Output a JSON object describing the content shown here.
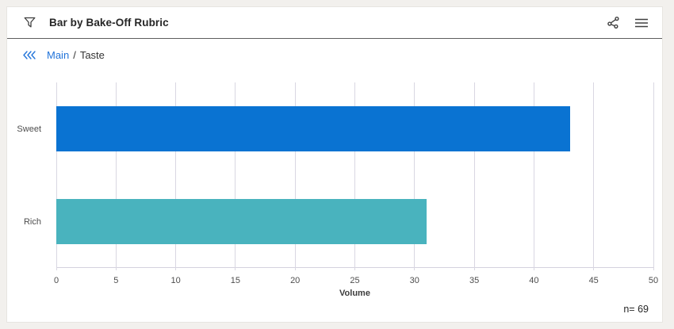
{
  "header": {
    "title": "Bar by Bake-Off Rubric",
    "icons": {
      "filter": "filter-funnel-icon",
      "share": "share-icon",
      "menu": "hamburger-menu-icon"
    }
  },
  "breadcrumb": {
    "collapse_icon": "triple-chevron-left-icon",
    "root_label": "Main",
    "separator": "/",
    "current_label": "Taste"
  },
  "colors": {
    "bar_blue": "#0a73d2",
    "bar_teal": "#49b3be",
    "gridline": "#d9d7e2",
    "link_blue": "#2274da"
  },
  "chart_data": {
    "type": "bar",
    "orientation": "horizontal",
    "title": "Bar by Bake-Off Rubric",
    "categories": [
      "Sweet",
      "Rich"
    ],
    "values": [
      43,
      31
    ],
    "bar_colors": [
      "#0a73d2",
      "#49b3be"
    ],
    "xlabel": "Volume",
    "ylabel": "",
    "xlim": [
      0,
      50
    ],
    "xticks": [
      0,
      5,
      10,
      15,
      20,
      25,
      30,
      35,
      40,
      45,
      50
    ],
    "grid": "vertical",
    "legend": "none",
    "sample_size_label": "n= 69"
  }
}
